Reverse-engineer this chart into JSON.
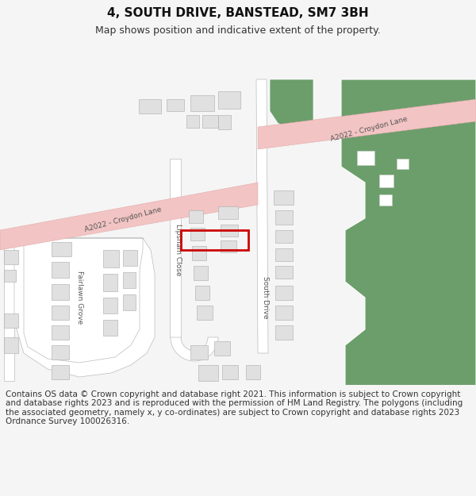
{
  "title": "4, SOUTH DRIVE, BANSTEAD, SM7 3BH",
  "subtitle": "Map shows position and indicative extent of the property.",
  "footer": "Contains OS data © Crown copyright and database right 2021. This information is subject to Crown copyright and database rights 2023 and is reproduced with the permission of HM Land Registry. The polygons (including the associated geometry, namely x, y co-ordinates) are subject to Crown copyright and database rights 2023 Ordnance Survey 100026316.",
  "bg_color": "#f5f5f5",
  "map_bg": "#ffffff",
  "road_pink": "#f2c4c4",
  "road_outline": "#dda0a0",
  "green_area": "#6b9e6b",
  "building_color": "#e0e0e0",
  "building_outline": "#aaaaaa",
  "highlight_color": "#cc0000",
  "text_color": "#444444",
  "title_fontsize": 11,
  "subtitle_fontsize": 9,
  "footer_fontsize": 7.5
}
